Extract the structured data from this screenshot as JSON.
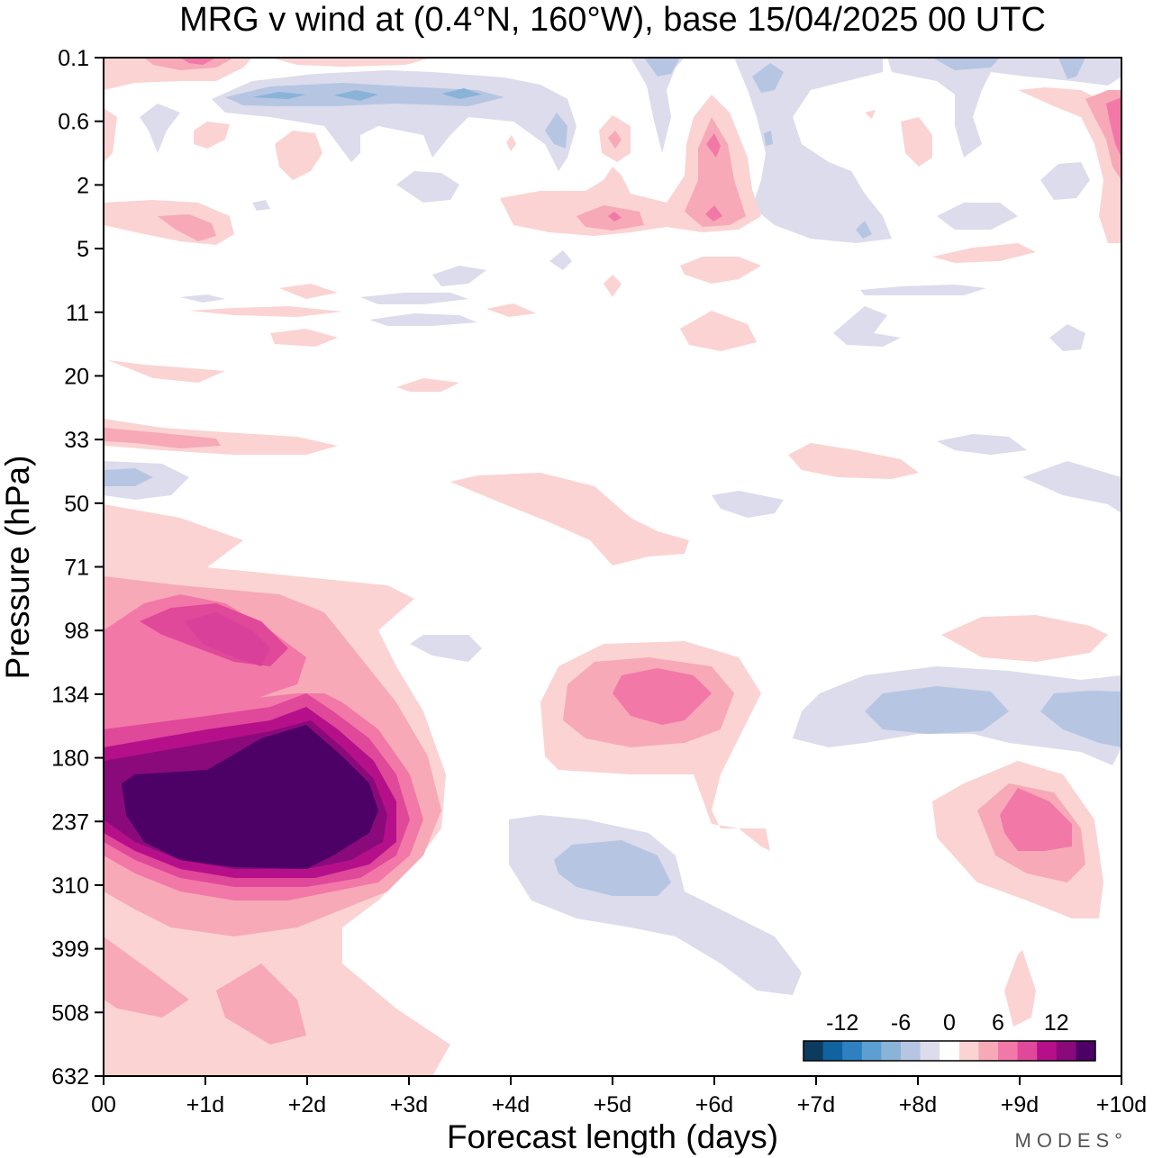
{
  "chart_data": {
    "type": "heatmap",
    "title": "MRG v wind at (0.4°N, 160°W),  base 15/04/2025  00 UTC",
    "xlabel": "Forecast length (days)",
    "ylabel": "Pressure (hPa)",
    "x_ticks": [
      "00",
      "+1d",
      "+2d",
      "+3d",
      "+4d",
      "+5d",
      "+6d",
      "+7d",
      "+8d",
      "+9d",
      "+10d"
    ],
    "y_ticks": [
      "0.1",
      "0.6",
      "2",
      "5",
      "11",
      "20",
      "33",
      "50",
      "71",
      "98",
      "134",
      "180",
      "237",
      "310",
      "399",
      "508",
      "632"
    ],
    "xlim": [
      0,
      10
    ],
    "ylim_hpa": [
      632,
      0.1
    ],
    "colorbar": {
      "tick_labels": [
        "-12",
        "-6",
        "0",
        "6",
        "12"
      ],
      "tick_values": [
        -12,
        -6,
        0,
        6,
        12
      ],
      "levels": [
        -14,
        -12,
        -10,
        -8,
        -6,
        -4,
        -2,
        2,
        4,
        6,
        8,
        10,
        12,
        14
      ],
      "colors": [
        "#0d3b5e",
        "#1062a0",
        "#2e80c0",
        "#5d9fd0",
        "#8ab3d8",
        "#b6c6e2",
        "#dcdcec",
        "#ffffff",
        "#fbd3d3",
        "#f7a9b8",
        "#f278a8",
        "#e0489a",
        "#b5108a",
        "#8a0a7c",
        "#4d0066"
      ]
    },
    "features": [
      {
        "sign": "positive",
        "peak": 16,
        "day": 1.3,
        "hpa": 237,
        "label": "strong maximum"
      },
      {
        "sign": "positive",
        "peak": 9,
        "day": 1.0,
        "hpa": 100,
        "label": "secondary maximum"
      },
      {
        "sign": "positive",
        "peak": 8,
        "day": 5.5,
        "hpa": 140,
        "label": "positive center"
      },
      {
        "sign": "positive",
        "peak": 8,
        "day": 9.1,
        "hpa": 230,
        "label": "positive center"
      },
      {
        "sign": "negative",
        "peak": -4,
        "day": 5.1,
        "hpa": 275,
        "label": "negative center"
      },
      {
        "sign": "negative",
        "peak": -4,
        "day": 8.3,
        "hpa": 155,
        "label": "negative center"
      },
      {
        "sign": "negative",
        "peak": -4,
        "day": 9.8,
        "hpa": 155,
        "label": "negative center"
      },
      {
        "sign": "positive",
        "peak": 8,
        "day": 6.0,
        "hpa": 1.5,
        "label": "upper positive center"
      },
      {
        "sign": "positive",
        "peak": 6,
        "day": 5.0,
        "hpa": 3.5,
        "label": "upper positive center"
      },
      {
        "sign": "negative",
        "peak": -4,
        "day": 2.5,
        "hpa": 0.35,
        "label": "upper negative band"
      }
    ]
  },
  "branding": {
    "logo_text": "MODES°"
  }
}
